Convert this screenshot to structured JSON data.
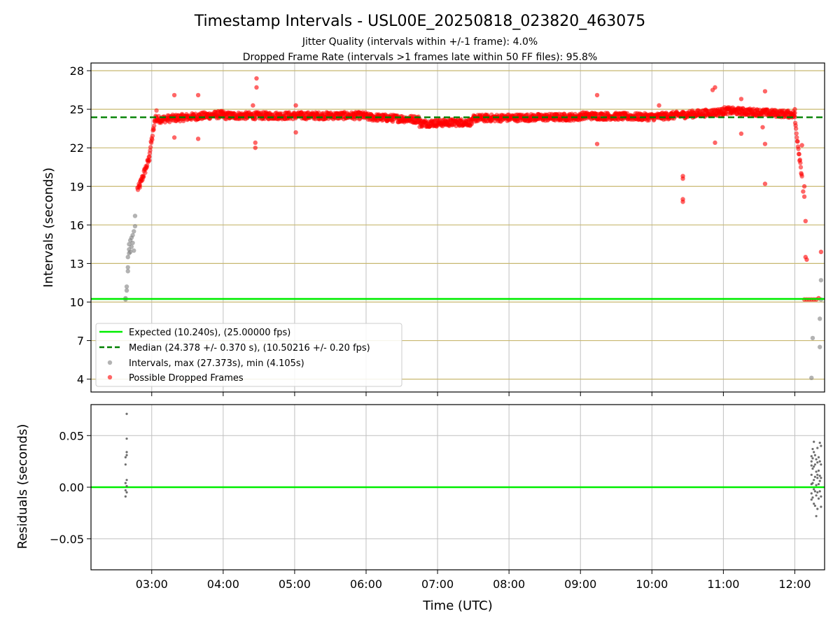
{
  "title": "Timestamp Intervals - USL00E_20250818_023820_463075",
  "subtitle_lines": [
    "Jitter Quality (intervals within +/-1 frame): 4.0%",
    "Dropped Frame Rate (intervals >1 frames late within 50 FF files): 95.8%"
  ],
  "colors": {
    "expected": "#00ee00",
    "median": "#008000",
    "intervals": "#808080",
    "dropped": "#ff0000",
    "hgrid_top": "#c8b870",
    "grid": "#c0c0c0"
  },
  "chart_data": [
    {
      "type": "scatter",
      "panel": "intervals",
      "ylabel": "Intervals (seconds)",
      "xlabel": "",
      "x_ticks": [
        "03:00",
        "04:00",
        "05:00",
        "06:00",
        "07:00",
        "08:00",
        "09:00",
        "10:00",
        "11:00",
        "12:00"
      ],
      "xlim": [
        "02:09",
        "12:25"
      ],
      "y_ticks": [
        4,
        7,
        10,
        13,
        16,
        19,
        22,
        25,
        28
      ],
      "ylim": [
        3.0,
        28.6
      ],
      "grid": true,
      "legend_position": "lower-left",
      "reference_lines": [
        {
          "name": "Expected (10.240s), (25.00000 fps)",
          "y": 10.24,
          "style": "solid"
        },
        {
          "name": "Median (24.378 +/- 0.370 s), (10.50216 +/- 0.20 fps)",
          "y": 24.378,
          "style": "dashed"
        }
      ],
      "legend": [
        "Expected (10.240s), (25.00000 fps)",
        "Median (24.378 +/- 0.370 s), (10.50216 +/- 0.20 fps)",
        "Intervals, max (27.373s), min (4.105s)",
        "Possible Dropped Frames"
      ],
      "series": [
        {
          "name": "Intervals, max (27.373s), min (4.105s)",
          "points": [
            [
              "02:38",
              10.2
            ],
            [
              "02:38",
              10.3
            ],
            [
              "02:39",
              10.9
            ],
            [
              "02:39",
              11.2
            ],
            [
              "02:40",
              12.4
            ],
            [
              "02:40",
              12.7
            ],
            [
              "02:40",
              13.5
            ],
            [
              "02:41",
              13.8
            ],
            [
              "02:41",
              14.1
            ],
            [
              "02:41",
              14.5
            ],
            [
              "02:42",
              14.8
            ],
            [
              "02:42",
              13.9
            ],
            [
              "02:43",
              14.3
            ],
            [
              "02:43",
              15.0
            ],
            [
              "02:44",
              14.6
            ],
            [
              "02:44",
              15.2
            ],
            [
              "02:45",
              14.0
            ],
            [
              "02:45",
              15.5
            ],
            [
              "02:46",
              16.7
            ],
            [
              "02:46",
              15.9
            ],
            [
              "12:14",
              4.1
            ],
            [
              "12:15",
              7.2
            ],
            [
              "12:21",
              6.5
            ],
            [
              "12:21",
              8.7
            ],
            [
              "12:22",
              10.2
            ],
            [
              "12:22",
              11.7
            ]
          ]
        },
        {
          "name": "Possible Dropped Frames",
          "segments": [
            {
              "x": [
                "02:48",
                "02:50"
              ],
              "y": [
                18.8,
                19.0
              ]
            },
            {
              "x": [
                "02:50",
                "02:58"
              ],
              "y": [
                19.1,
                21.2
              ]
            },
            {
              "x": [
                "02:58",
                "03:04"
              ],
              "y": [
                21.5,
                24.8
              ]
            },
            {
              "x": [
                "03:04",
                "04:00"
              ],
              "y": [
                24.2,
                24.6
              ]
            },
            {
              "x": [
                "04:00",
                "06:00"
              ],
              "y": [
                24.5,
                24.5
              ]
            },
            {
              "x": [
                "06:00",
                "06:45"
              ],
              "y": [
                24.4,
                24.2
              ]
            },
            {
              "x": [
                "06:45",
                "07:30"
              ],
              "y": [
                23.9,
                24.0
              ]
            },
            {
              "x": [
                "07:30",
                "09:00"
              ],
              "y": [
                24.3,
                24.4
              ]
            },
            {
              "x": [
                "09:00",
                "10:00"
              ],
              "y": [
                24.5,
                24.4
              ]
            },
            {
              "x": [
                "10:00",
                "11:00"
              ],
              "y": [
                24.4,
                24.8
              ]
            },
            {
              "x": [
                "11:00",
                "12:00"
              ],
              "y": [
                24.9,
                24.6
              ]
            },
            {
              "x": [
                "12:00",
                "12:06"
              ],
              "y": [
                24.2,
                19.8
              ]
            }
          ],
          "points": [
            [
              "03:19",
              26.1
            ],
            [
              "03:19",
              22.8
            ],
            [
              "03:39",
              26.1
            ],
            [
              "03:39",
              22.7
            ],
            [
              "04:25",
              25.3
            ],
            [
              "04:27",
              22.4
            ],
            [
              "04:27",
              22.0
            ],
            [
              "04:28",
              26.7
            ],
            [
              "04:28",
              27.4
            ],
            [
              "05:01",
              25.3
            ],
            [
              "05:01",
              23.2
            ],
            [
              "09:14",
              26.1
            ],
            [
              "09:14",
              22.3
            ],
            [
              "10:06",
              25.3
            ],
            [
              "10:26",
              19.8
            ],
            [
              "10:26",
              19.6
            ],
            [
              "10:26",
              18.0
            ],
            [
              "10:26",
              17.8
            ],
            [
              "10:51",
              26.5
            ],
            [
              "10:53",
              26.7
            ],
            [
              "10:53",
              22.4
            ],
            [
              "11:15",
              25.8
            ],
            [
              "11:15",
              23.1
            ],
            [
              "11:33",
              23.6
            ],
            [
              "11:35",
              26.4
            ],
            [
              "11:35",
              19.2
            ],
            [
              "11:35",
              22.3
            ],
            [
              "12:00",
              25.0
            ],
            [
              "12:06",
              22.2
            ],
            [
              "12:07",
              18.6
            ],
            [
              "12:08",
              18.2
            ],
            [
              "12:08",
              19.0
            ],
            [
              "12:09",
              16.3
            ],
            [
              "12:09",
              13.5
            ],
            [
              "12:10",
              13.3
            ],
            [
              "12:22",
              13.9
            ],
            [
              "12:08",
              10.2
            ],
            [
              "12:10",
              10.2
            ],
            [
              "12:12",
              10.2
            ],
            [
              "12:14",
              10.2
            ],
            [
              "12:16",
              10.2
            ],
            [
              "12:18",
              10.2
            ],
            [
              "12:20",
              10.3
            ]
          ]
        }
      ]
    },
    {
      "type": "scatter",
      "panel": "residuals",
      "ylabel": "Residuals (seconds)",
      "xlabel": "Time (UTC)",
      "x_ticks": [
        "03:00",
        "04:00",
        "05:00",
        "06:00",
        "07:00",
        "08:00",
        "09:00",
        "10:00",
        "11:00",
        "12:00"
      ],
      "xlim": [
        "02:09",
        "12:25"
      ],
      "y_ticks": [
        "−0.05",
        "0.00",
        "0.05"
      ],
      "y_tick_values": [
        -0.05,
        0.0,
        0.05
      ],
      "ylim": [
        -0.08,
        0.08
      ],
      "grid": true,
      "reference_lines": [
        {
          "y": 0.0,
          "style": "solid"
        }
      ],
      "series": [
        {
          "points": [
            [
              "02:39",
              0.071
            ],
            [
              "02:39",
              0.047
            ],
            [
              "02:39",
              0.034
            ],
            [
              "02:39",
              0.031
            ],
            [
              "02:38",
              0.029
            ],
            [
              "02:38",
              0.022
            ],
            [
              "02:39",
              0.007
            ],
            [
              "02:38",
              0.004
            ],
            [
              "02:39",
              0.001
            ],
            [
              "02:38",
              -0.003
            ],
            [
              "02:39",
              -0.005
            ],
            [
              "02:38",
              -0.009
            ],
            [
              "12:14",
              0.03
            ],
            [
              "12:14",
              0.025
            ],
            [
              "12:14",
              0.021
            ],
            [
              "12:14",
              0.012
            ],
            [
              "12:14",
              0.003
            ],
            [
              "12:14",
              -0.006
            ],
            [
              "12:14",
              -0.012
            ],
            [
              "12:15",
              0.037
            ],
            [
              "12:15",
              0.028
            ],
            [
              "12:15",
              0.018
            ],
            [
              "12:15",
              0.004
            ],
            [
              "12:15",
              -0.01
            ],
            [
              "12:16",
              0.044
            ],
            [
              "12:16",
              0.034
            ],
            [
              "12:16",
              0.02
            ],
            [
              "12:16",
              0.007
            ],
            [
              "12:16",
              -0.002
            ],
            [
              "12:16",
              -0.016
            ],
            [
              "12:17",
              0.031
            ],
            [
              "12:17",
              0.022
            ],
            [
              "12:17",
              0.01
            ],
            [
              "12:17",
              -0.004
            ],
            [
              "12:17",
              -0.018
            ],
            [
              "12:18",
              0.027
            ],
            [
              "12:18",
              0.015
            ],
            [
              "12:18",
              0.002
            ],
            [
              "12:18",
              -0.008
            ],
            [
              "12:18",
              -0.028
            ],
            [
              "12:19",
              0.038
            ],
            [
              "12:19",
              0.024
            ],
            [
              "12:19",
              0.012
            ],
            [
              "12:19",
              0.009
            ],
            [
              "12:19",
              -0.005
            ],
            [
              "12:19",
              -0.021
            ],
            [
              "12:20",
              0.029
            ],
            [
              "12:20",
              0.016
            ],
            [
              "12:20",
              0.003
            ],
            [
              "12:20",
              -0.011
            ],
            [
              "12:21",
              0.043
            ],
            [
              "12:21",
              0.025
            ],
            [
              "12:21",
              0.011
            ],
            [
              "12:21",
              0.006
            ],
            [
              "12:21",
              -0.004
            ],
            [
              "12:22",
              0.04
            ],
            [
              "12:22",
              0.022
            ],
            [
              "12:22",
              0.009
            ],
            [
              "12:22",
              -0.009
            ],
            [
              "12:22",
              -0.019
            ]
          ]
        }
      ]
    }
  ]
}
